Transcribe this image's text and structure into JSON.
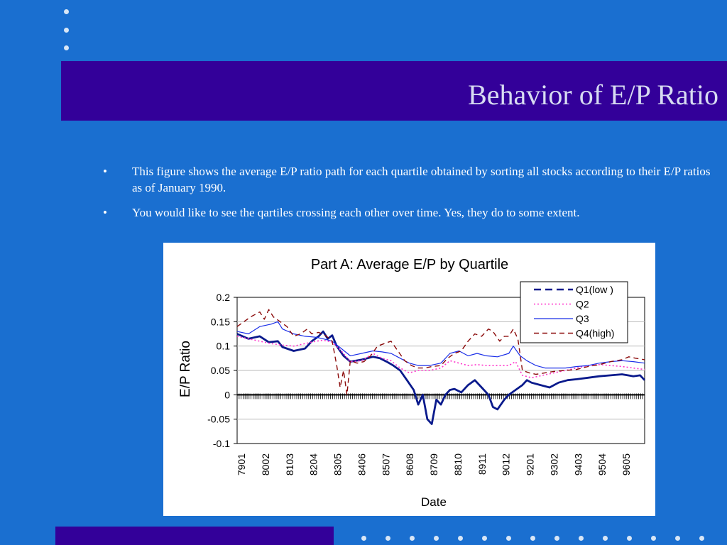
{
  "slide": {
    "title": "Behavior of E/P Ratio",
    "bullets": [
      "This figure shows the average E/P ratio path for each quartile obtained by sorting all stocks according to their E/P ratios as of January 1990.",
      "You would like to see the qartiles crossing each other over time. Yes, they do to some extent."
    ],
    "bullet_mark": "•"
  },
  "colors": {
    "background": "#1a6fd0",
    "title_band": "#330099",
    "title_text": "#d8dcf2",
    "q1": "#0a1a8c",
    "q2": "#ff33cc",
    "q3": "#1a2ee8",
    "q4": "#8b0a0a"
  },
  "chart_data": {
    "type": "line",
    "title": "Part A: Average E/P by Quartile",
    "xlabel": "Date",
    "ylabel": "E/P Ratio",
    "ylim": [
      -0.1,
      0.2
    ],
    "yticks": [
      "0.2",
      "0.15",
      "0.1",
      "0.05",
      "0",
      "-0.05",
      "-0.1"
    ],
    "xticks": [
      "7901",
      "8002",
      "8103",
      "8204",
      "8305",
      "8406",
      "8507",
      "8608",
      "8709",
      "8810",
      "8911",
      "9012",
      "9201",
      "9302",
      "9403",
      "9504",
      "9605"
    ],
    "legend_position": "top-right",
    "grid": "horizontal",
    "x_domain": [
      1979.0,
      1997.0
    ],
    "series": [
      {
        "name": "Q1(low )",
        "style": "dashed-thick",
        "color": "#0a1a8c",
        "points": [
          [
            1979.0,
            0.125
          ],
          [
            1979.5,
            0.115
          ],
          [
            1980.0,
            0.12
          ],
          [
            1980.4,
            0.108
          ],
          [
            1980.8,
            0.11
          ],
          [
            1981.0,
            0.098
          ],
          [
            1981.5,
            0.09
          ],
          [
            1982.0,
            0.095
          ],
          [
            1982.3,
            0.11
          ],
          [
            1982.6,
            0.12
          ],
          [
            1982.8,
            0.13
          ],
          [
            1983.0,
            0.115
          ],
          [
            1983.2,
            0.122
          ],
          [
            1983.4,
            0.1
          ],
          [
            1983.7,
            0.08
          ],
          [
            1984.0,
            0.068
          ],
          [
            1984.5,
            0.072
          ],
          [
            1985.0,
            0.078
          ],
          [
            1985.3,
            0.075
          ],
          [
            1985.6,
            0.068
          ],
          [
            1985.9,
            0.06
          ],
          [
            1986.2,
            0.05
          ],
          [
            1986.5,
            0.03
          ],
          [
            1986.8,
            0.01
          ],
          [
            1987.0,
            -0.02
          ],
          [
            1987.2,
            0.0
          ],
          [
            1987.4,
            -0.05
          ],
          [
            1987.6,
            -0.06
          ],
          [
            1987.8,
            -0.01
          ],
          [
            1988.0,
            -0.02
          ],
          [
            1988.2,
            0.0
          ],
          [
            1988.4,
            0.01
          ],
          [
            1988.6,
            0.012
          ],
          [
            1988.9,
            0.005
          ],
          [
            1989.2,
            0.02
          ],
          [
            1989.5,
            0.03
          ],
          [
            1989.8,
            0.015
          ],
          [
            1990.1,
            0.0
          ],
          [
            1990.3,
            -0.025
          ],
          [
            1990.5,
            -0.03
          ],
          [
            1990.8,
            -0.01
          ],
          [
            1991.0,
            0.0
          ],
          [
            1991.3,
            0.01
          ],
          [
            1991.6,
            0.02
          ],
          [
            1991.8,
            0.03
          ],
          [
            1992.0,
            0.025
          ],
          [
            1992.4,
            0.02
          ],
          [
            1992.8,
            0.015
          ],
          [
            1993.2,
            0.025
          ],
          [
            1993.6,
            0.03
          ],
          [
            1994.0,
            0.032
          ],
          [
            1994.5,
            0.035
          ],
          [
            1995.0,
            0.038
          ],
          [
            1995.5,
            0.04
          ],
          [
            1996.0,
            0.042
          ],
          [
            1996.5,
            0.038
          ],
          [
            1996.8,
            0.04
          ],
          [
            1997.0,
            0.03
          ]
        ]
      },
      {
        "name": "Q2",
        "style": "dotted",
        "color": "#ff33cc",
        "points": [
          [
            1979.0,
            0.12
          ],
          [
            1979.5,
            0.115
          ],
          [
            1980.0,
            0.11
          ],
          [
            1980.5,
            0.105
          ],
          [
            1981.0,
            0.102
          ],
          [
            1981.5,
            0.1
          ],
          [
            1982.0,
            0.105
          ],
          [
            1982.5,
            0.11
          ],
          [
            1982.8,
            0.112
          ],
          [
            1983.2,
            0.108
          ],
          [
            1983.6,
            0.09
          ],
          [
            1984.0,
            0.068
          ],
          [
            1984.5,
            0.07
          ],
          [
            1985.0,
            0.085
          ],
          [
            1985.4,
            0.075
          ],
          [
            1985.8,
            0.07
          ],
          [
            1986.2,
            0.055
          ],
          [
            1986.6,
            0.045
          ],
          [
            1987.0,
            0.05
          ],
          [
            1987.5,
            0.05
          ],
          [
            1988.0,
            0.055
          ],
          [
            1988.4,
            0.07
          ],
          [
            1988.8,
            0.065
          ],
          [
            1989.2,
            0.06
          ],
          [
            1989.6,
            0.062
          ],
          [
            1990.0,
            0.06
          ],
          [
            1990.5,
            0.06
          ],
          [
            1991.0,
            0.06
          ],
          [
            1991.3,
            0.068
          ],
          [
            1991.6,
            0.04
          ],
          [
            1992.0,
            0.035
          ],
          [
            1992.5,
            0.04
          ],
          [
            1993.0,
            0.045
          ],
          [
            1993.5,
            0.05
          ],
          [
            1994.0,
            0.055
          ],
          [
            1994.5,
            0.06
          ],
          [
            1995.0,
            0.062
          ],
          [
            1995.5,
            0.06
          ],
          [
            1996.0,
            0.058
          ],
          [
            1996.5,
            0.055
          ],
          [
            1997.0,
            0.052
          ]
        ]
      },
      {
        "name": "Q3",
        "style": "solid",
        "color": "#1a2ee8",
        "points": [
          [
            1979.0,
            0.13
          ],
          [
            1979.5,
            0.125
          ],
          [
            1980.0,
            0.14
          ],
          [
            1980.5,
            0.145
          ],
          [
            1980.8,
            0.15
          ],
          [
            1981.0,
            0.135
          ],
          [
            1981.5,
            0.125
          ],
          [
            1982.0,
            0.12
          ],
          [
            1982.5,
            0.118
          ],
          [
            1982.8,
            0.115
          ],
          [
            1983.2,
            0.11
          ],
          [
            1983.6,
            0.095
          ],
          [
            1984.0,
            0.08
          ],
          [
            1984.5,
            0.085
          ],
          [
            1985.0,
            0.09
          ],
          [
            1985.4,
            0.088
          ],
          [
            1985.8,
            0.085
          ],
          [
            1986.2,
            0.075
          ],
          [
            1986.6,
            0.065
          ],
          [
            1987.0,
            0.06
          ],
          [
            1987.5,
            0.06
          ],
          [
            1988.0,
            0.065
          ],
          [
            1988.4,
            0.085
          ],
          [
            1988.8,
            0.09
          ],
          [
            1989.2,
            0.08
          ],
          [
            1989.6,
            0.085
          ],
          [
            1990.0,
            0.08
          ],
          [
            1990.5,
            0.078
          ],
          [
            1991.0,
            0.085
          ],
          [
            1991.2,
            0.1
          ],
          [
            1991.5,
            0.08
          ],
          [
            1991.8,
            0.07
          ],
          [
            1992.2,
            0.06
          ],
          [
            1992.6,
            0.055
          ],
          [
            1993.0,
            0.055
          ],
          [
            1993.5,
            0.055
          ],
          [
            1994.0,
            0.058
          ],
          [
            1994.5,
            0.06
          ],
          [
            1995.0,
            0.065
          ],
          [
            1995.5,
            0.068
          ],
          [
            1996.0,
            0.07
          ],
          [
            1996.5,
            0.068
          ],
          [
            1997.0,
            0.065
          ]
        ]
      },
      {
        "name": "Q4(high)",
        "style": "dashed",
        "color": "#8b0a0a",
        "points": [
          [
            1979.0,
            0.14
          ],
          [
            1979.3,
            0.15
          ],
          [
            1979.6,
            0.16
          ],
          [
            1980.0,
            0.17
          ],
          [
            1980.2,
            0.155
          ],
          [
            1980.4,
            0.175
          ],
          [
            1980.6,
            0.16
          ],
          [
            1980.9,
            0.15
          ],
          [
            1981.2,
            0.14
          ],
          [
            1981.5,
            0.12
          ],
          [
            1981.8,
            0.125
          ],
          [
            1982.1,
            0.135
          ],
          [
            1982.3,
            0.125
          ],
          [
            1982.6,
            0.128
          ],
          [
            1982.9,
            0.122
          ],
          [
            1983.2,
            0.11
          ],
          [
            1983.4,
            0.06
          ],
          [
            1983.55,
            0.015
          ],
          [
            1983.7,
            0.05
          ],
          [
            1983.85,
            0.0
          ],
          [
            1984.0,
            0.07
          ],
          [
            1984.3,
            0.065
          ],
          [
            1984.6,
            0.068
          ],
          [
            1984.9,
            0.08
          ],
          [
            1985.2,
            0.1
          ],
          [
            1985.5,
            0.105
          ],
          [
            1985.8,
            0.11
          ],
          [
            1986.1,
            0.09
          ],
          [
            1986.4,
            0.07
          ],
          [
            1986.7,
            0.06
          ],
          [
            1987.0,
            0.055
          ],
          [
            1987.3,
            0.055
          ],
          [
            1987.6,
            0.058
          ],
          [
            1988.0,
            0.06
          ],
          [
            1988.3,
            0.075
          ],
          [
            1988.6,
            0.085
          ],
          [
            1988.9,
            0.09
          ],
          [
            1989.2,
            0.11
          ],
          [
            1989.5,
            0.125
          ],
          [
            1989.8,
            0.12
          ],
          [
            1990.1,
            0.135
          ],
          [
            1990.3,
            0.13
          ],
          [
            1990.6,
            0.11
          ],
          [
            1990.8,
            0.12
          ],
          [
            1991.0,
            0.12
          ],
          [
            1991.2,
            0.135
          ],
          [
            1991.4,
            0.115
          ],
          [
            1991.6,
            0.05
          ],
          [
            1991.9,
            0.045
          ],
          [
            1992.2,
            0.042
          ],
          [
            1992.6,
            0.045
          ],
          [
            1993.0,
            0.048
          ],
          [
            1993.5,
            0.05
          ],
          [
            1994.0,
            0.052
          ],
          [
            1994.5,
            0.058
          ],
          [
            1995.0,
            0.062
          ],
          [
            1995.5,
            0.068
          ],
          [
            1996.0,
            0.072
          ],
          [
            1996.3,
            0.078
          ],
          [
            1996.6,
            0.075
          ],
          [
            1997.0,
            0.072
          ]
        ]
      }
    ]
  }
}
